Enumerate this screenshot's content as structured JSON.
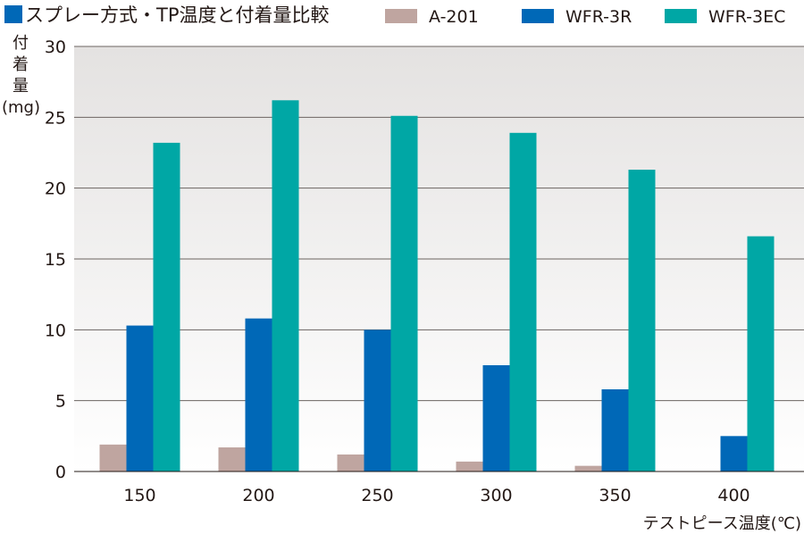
{
  "chart_data": {
    "type": "bar",
    "title": "スプレー方式・TP温度と付着量比較",
    "title_marker_color": "#0068b7",
    "ylabel_lines": [
      "付",
      "着",
      "量",
      "(mg)"
    ],
    "xlabel": "テストピース温度(℃)",
    "categories": [
      "150",
      "200",
      "250",
      "300",
      "350",
      "400"
    ],
    "ylim": [
      0,
      30
    ],
    "yticks": [
      "0",
      "5",
      "10",
      "15",
      "20",
      "25",
      "30"
    ],
    "legend_position": "top-right",
    "grid": true,
    "series": [
      {
        "name": "A-201",
        "color": "#bfa5a0",
        "values": [
          1.9,
          1.7,
          1.2,
          0.7,
          0.4,
          0
        ]
      },
      {
        "name": "WFR-3R",
        "color": "#0068b7",
        "values": [
          10.3,
          10.8,
          10.0,
          7.5,
          5.8,
          2.5
        ]
      },
      {
        "name": "WFR-3EC",
        "color": "#00a7a5",
        "values": [
          23.2,
          26.2,
          25.1,
          23.9,
          21.3,
          16.6
        ]
      }
    ]
  }
}
